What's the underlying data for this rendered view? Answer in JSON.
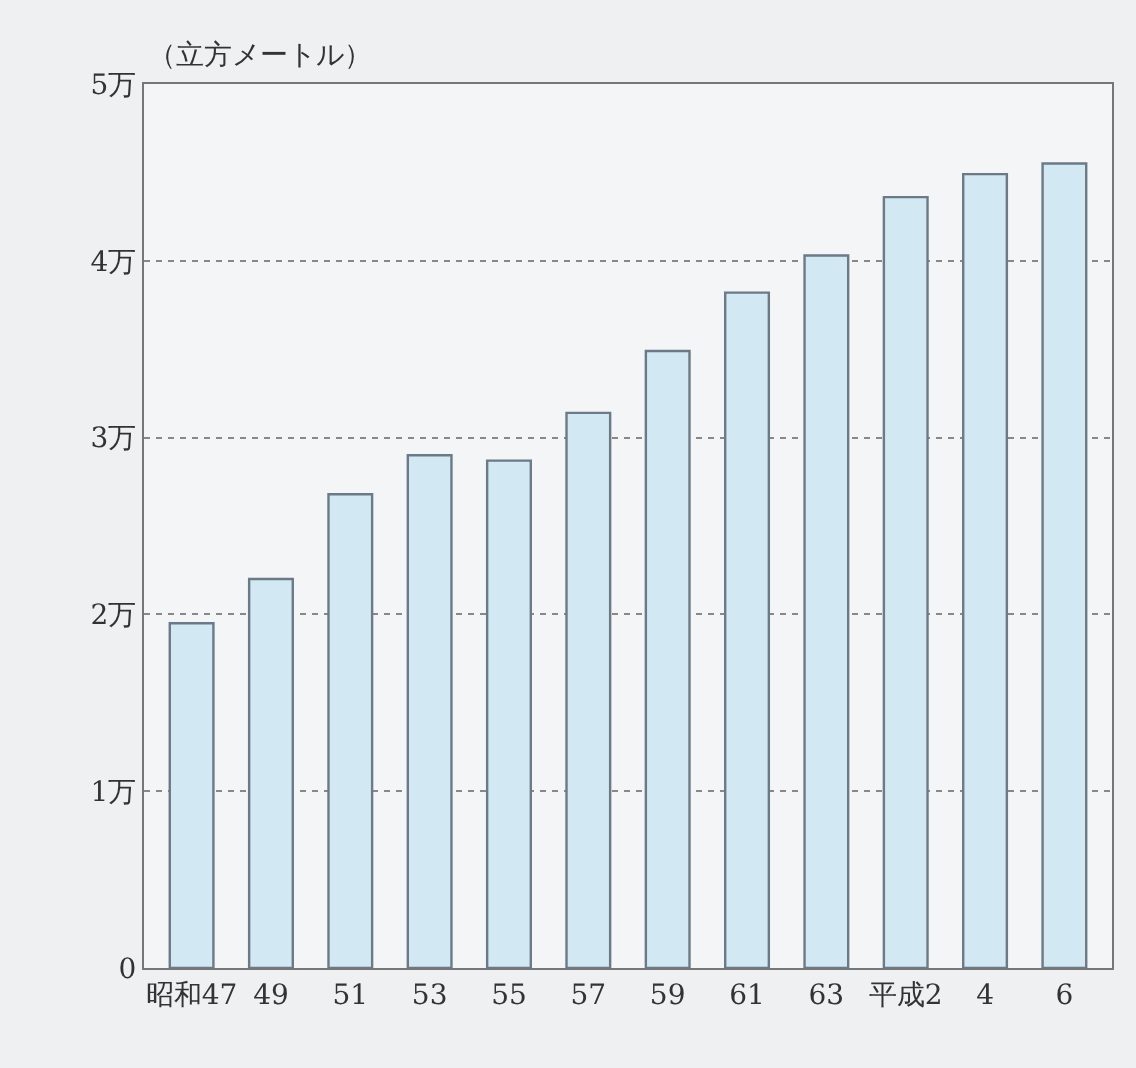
{
  "chart_data": {
    "type": "bar",
    "ylabel": "（立方メートル）",
    "categories": [
      "昭和47",
      "49",
      "51",
      "53",
      "55",
      "57",
      "59",
      "61",
      "63",
      "平成2",
      "4",
      "6"
    ],
    "values": [
      1.95,
      2.2,
      2.68,
      2.9,
      2.87,
      3.14,
      3.49,
      3.82,
      4.03,
      4.36,
      4.49,
      4.55
    ],
    "color": "#d2e9f3",
    "ylim": [
      0,
      5
    ],
    "yticks": [
      0,
      {
        "value": 1,
        "label": "1万"
      },
      {
        "value": 2,
        "label": "2万"
      },
      {
        "value": 3,
        "label": "3万"
      },
      {
        "value": 4,
        "label": "4万"
      },
      {
        "value": 5,
        "label": "5万"
      }
    ],
    "grid": "y",
    "legend": false
  }
}
